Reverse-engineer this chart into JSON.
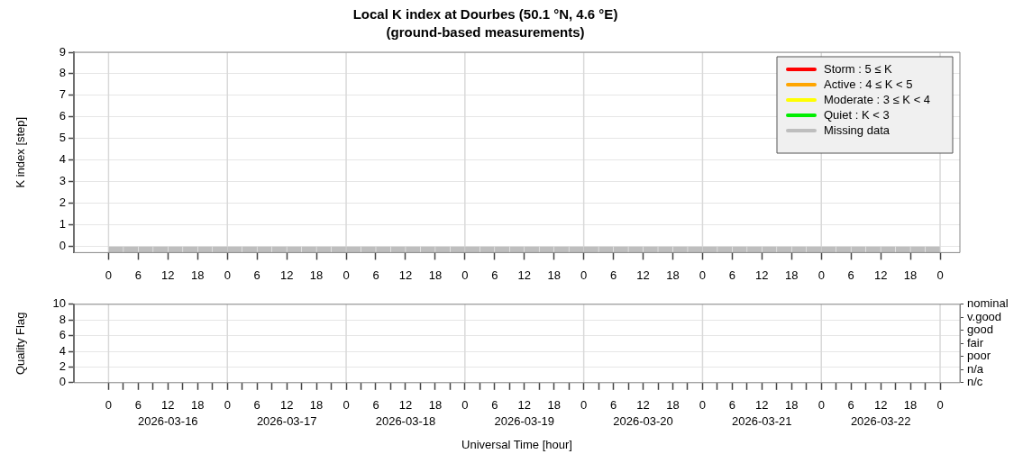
{
  "chart_data": [
    {
      "type": "bar",
      "title": "Local K index at Dourbes (50.1 °N, 4.6 °E)",
      "subtitle": "(ground-based measurements)",
      "ylabel": "K index [step]",
      "xlim": [
        "2026-03-15T17:00",
        "2026-03-23T04:00"
      ],
      "ylim": [
        -0.3,
        9
      ],
      "yticks": [
        0,
        1,
        2,
        3,
        4,
        5,
        6,
        7,
        8,
        9
      ],
      "xticks": [
        {
          "value": "2026-03-16T00:00",
          "label": "0"
        },
        {
          "value": "2026-03-16T06:00",
          "label": "6"
        },
        {
          "value": "2026-03-16T12:00",
          "label": "12"
        },
        {
          "value": "2026-03-16T18:00",
          "label": "18"
        },
        {
          "value": "2026-03-17T00:00",
          "label": "0"
        },
        {
          "value": "2026-03-17T06:00",
          "label": "6"
        },
        {
          "value": "2026-03-17T12:00",
          "label": "12"
        },
        {
          "value": "2026-03-17T18:00",
          "label": "18"
        },
        {
          "value": "2026-03-18T00:00",
          "label": "0"
        },
        {
          "value": "2026-03-18T06:00",
          "label": "6"
        },
        {
          "value": "2026-03-18T12:00",
          "label": "12"
        },
        {
          "value": "2026-03-18T18:00",
          "label": "18"
        },
        {
          "value": "2026-03-19T00:00",
          "label": "0"
        },
        {
          "value": "2026-03-19T06:00",
          "label": "6"
        },
        {
          "value": "2026-03-19T12:00",
          "label": "12"
        },
        {
          "value": "2026-03-19T18:00",
          "label": "18"
        },
        {
          "value": "2026-03-20T00:00",
          "label": "0"
        },
        {
          "value": "2026-03-20T06:00",
          "label": "6"
        },
        {
          "value": "2026-03-20T12:00",
          "label": "12"
        },
        {
          "value": "2026-03-20T18:00",
          "label": "18"
        },
        {
          "value": "2026-03-21T00:00",
          "label": "0"
        },
        {
          "value": "2026-03-21T06:00",
          "label": "6"
        },
        {
          "value": "2026-03-21T12:00",
          "label": "12"
        },
        {
          "value": "2026-03-21T18:00",
          "label": "18"
        },
        {
          "value": "2026-03-22T00:00",
          "label": "0"
        },
        {
          "value": "2026-03-22T06:00",
          "label": "6"
        },
        {
          "value": "2026-03-22T12:00",
          "label": "12"
        },
        {
          "value": "2026-03-22T18:00",
          "label": "18"
        },
        {
          "value": "2026-03-23T00:00",
          "label": "0"
        }
      ],
      "grid": "y",
      "legend": "top right",
      "ref_lines": [
        {
          "axis": "x",
          "value": "2026-03-16T00:00",
          "color": "#d9d9d9"
        },
        {
          "axis": "x",
          "value": "2026-03-17T00:00",
          "color": "#d9d9d9"
        },
        {
          "axis": "x",
          "value": "2026-03-18T00:00",
          "color": "#d9d9d9"
        },
        {
          "axis": "x",
          "value": "2026-03-19T00:00",
          "color": "#d9d9d9"
        },
        {
          "axis": "x",
          "value": "2026-03-20T00:00",
          "color": "#d9d9d9"
        },
        {
          "axis": "x",
          "value": "2026-03-21T00:00",
          "color": "#d9d9d9"
        },
        {
          "axis": "x",
          "value": "2026-03-22T00:00",
          "color": "#d9d9d9"
        },
        {
          "axis": "x",
          "value": "2026-03-23T00:00",
          "color": "#d9d9d9"
        }
      ],
      "series": [
        {
          "name": "Storm : 5 ≤ K",
          "color": "#ff0000"
        },
        {
          "name": "Active : 4 ≤ K < 5",
          "color": "#ffa500"
        },
        {
          "name": "Moderate : 3 ≤ K < 4",
          "color": "#ffff00"
        },
        {
          "name": "Quiet : K < 3",
          "color": "#00ee00"
        },
        {
          "name": "Missing data",
          "color": "#bebebe",
          "x": [
            "2026-03-16T01:30",
            "2026-03-16T04:30",
            "2026-03-16T07:30",
            "2026-03-16T10:30",
            "2026-03-16T13:30",
            "2026-03-16T16:30",
            "2026-03-16T19:30",
            "2026-03-16T22:30",
            "2026-03-17T01:30",
            "2026-03-17T04:30",
            "2026-03-17T07:30",
            "2026-03-17T10:30",
            "2026-03-17T13:30",
            "2026-03-17T16:30",
            "2026-03-17T19:30",
            "2026-03-17T22:30",
            "2026-03-18T01:30",
            "2026-03-18T04:30",
            "2026-03-18T07:30",
            "2026-03-18T10:30",
            "2026-03-18T13:30",
            "2026-03-18T16:30",
            "2026-03-18T19:30",
            "2026-03-18T22:30",
            "2026-03-19T01:30",
            "2026-03-19T04:30",
            "2026-03-19T07:30",
            "2026-03-19T10:30",
            "2026-03-19T13:30",
            "2026-03-19T16:30",
            "2026-03-19T19:30",
            "2026-03-19T22:30",
            "2026-03-20T01:30",
            "2026-03-20T04:30",
            "2026-03-20T07:30",
            "2026-03-20T10:30",
            "2026-03-20T13:30",
            "2026-03-20T16:30",
            "2026-03-20T19:30",
            "2026-03-20T22:30",
            "2026-03-21T01:30",
            "2026-03-21T04:30",
            "2026-03-21T07:30",
            "2026-03-21T10:30",
            "2026-03-21T13:30",
            "2026-03-21T16:30",
            "2026-03-21T19:30",
            "2026-03-21T22:30",
            "2026-03-22T01:30",
            "2026-03-22T04:30",
            "2026-03-22T07:30",
            "2026-03-22T10:30",
            "2026-03-22T13:30",
            "2026-03-22T16:30",
            "2026-03-22T19:30",
            "2026-03-22T22:30"
          ],
          "values": [
            0.3,
            0.3,
            0.3,
            0.3,
            0.3,
            0.3,
            0.3,
            0.3,
            0.3,
            0.3,
            0.3,
            0.3,
            0.3,
            0.3,
            0.3,
            0.3,
            0.3,
            0.3,
            0.3,
            0.3,
            0.3,
            0.3,
            0.3,
            0.3,
            0.3,
            0.3,
            0.3,
            0.3,
            0.3,
            0.3,
            0.3,
            0.3,
            0.3,
            0.3,
            0.3,
            0.3,
            0.3,
            0.3,
            0.3,
            0.3,
            0.3,
            0.3,
            0.3,
            0.3,
            0.3,
            0.3,
            0.3,
            0.3,
            0.3,
            0.3,
            0.3,
            0.3,
            0.3,
            0.3,
            0.3,
            0.3
          ],
          "base": [
            -0.3,
            -0.3,
            -0.3,
            -0.3,
            -0.3,
            -0.3,
            -0.3,
            -0.3,
            -0.3,
            -0.3,
            -0.3,
            -0.3,
            -0.3,
            -0.3,
            -0.3,
            -0.3,
            -0.3,
            -0.3,
            -0.3,
            -0.3,
            -0.3,
            -0.3,
            -0.3,
            -0.3,
            -0.3,
            -0.3,
            -0.3,
            -0.3,
            -0.3,
            -0.3,
            -0.3,
            -0.3,
            -0.3,
            -0.3,
            -0.3,
            -0.3,
            -0.3,
            -0.3,
            -0.3,
            -0.3,
            -0.3,
            -0.3,
            -0.3,
            -0.3,
            -0.3,
            -0.3,
            -0.3,
            -0.3,
            -0.3,
            -0.3,
            -0.3,
            -0.3,
            -0.3,
            -0.3,
            -0.3,
            -0.3
          ]
        }
      ]
    },
    {
      "type": "line",
      "ylabel": "Quality Flag",
      "xlabel": "Universal Time [hour]",
      "xlim": [
        "2026-03-15T17:00",
        "2026-03-23T04:00"
      ],
      "ylim": [
        0,
        10
      ],
      "yticks": [
        0,
        2,
        4,
        6,
        8,
        10
      ],
      "y2_categories": [
        "nominal",
        "v.good",
        "good",
        "fair",
        "poor",
        "n/a",
        "n/c"
      ],
      "xticks": [
        {
          "value": "2026-03-16T00:00",
          "label": "0"
        },
        {
          "value": "2026-03-16T03:00",
          "label": null
        },
        {
          "value": "2026-03-16T06:00",
          "label": "6"
        },
        {
          "value": "2026-03-16T09:00",
          "label": null
        },
        {
          "value": "2026-03-16T12:00",
          "label": "12"
        },
        {
          "value": "2026-03-16T15:00",
          "label": null
        },
        {
          "value": "2026-03-16T18:00",
          "label": "18"
        },
        {
          "value": "2026-03-16T21:00",
          "label": null
        },
        {
          "value": "2026-03-17T00:00",
          "label": "0"
        },
        {
          "value": "2026-03-17T03:00",
          "label": null
        },
        {
          "value": "2026-03-17T06:00",
          "label": "6"
        },
        {
          "value": "2026-03-17T09:00",
          "label": null
        },
        {
          "value": "2026-03-17T12:00",
          "label": "12"
        },
        {
          "value": "2026-03-17T15:00",
          "label": null
        },
        {
          "value": "2026-03-17T18:00",
          "label": "18"
        },
        {
          "value": "2026-03-17T21:00",
          "label": null
        },
        {
          "value": "2026-03-18T00:00",
          "label": "0"
        },
        {
          "value": "2026-03-18T03:00",
          "label": null
        },
        {
          "value": "2026-03-18T06:00",
          "label": "6"
        },
        {
          "value": "2026-03-18T09:00",
          "label": null
        },
        {
          "value": "2026-03-18T12:00",
          "label": "12"
        },
        {
          "value": "2026-03-18T15:00",
          "label": null
        },
        {
          "value": "2026-03-18T18:00",
          "label": "18"
        },
        {
          "value": "2026-03-18T21:00",
          "label": null
        },
        {
          "value": "2026-03-19T00:00",
          "label": "0"
        },
        {
          "value": "2026-03-19T03:00",
          "label": null
        },
        {
          "value": "2026-03-19T06:00",
          "label": "6"
        },
        {
          "value": "2026-03-19T09:00",
          "label": null
        },
        {
          "value": "2026-03-19T12:00",
          "label": "12"
        },
        {
          "value": "2026-03-19T15:00",
          "label": null
        },
        {
          "value": "2026-03-19T18:00",
          "label": "18"
        },
        {
          "value": "2026-03-19T21:00",
          "label": null
        },
        {
          "value": "2026-03-20T00:00",
          "label": "0"
        },
        {
          "value": "2026-03-20T03:00",
          "label": null
        },
        {
          "value": "2026-03-20T06:00",
          "label": "6"
        },
        {
          "value": "2026-03-20T09:00",
          "label": null
        },
        {
          "value": "2026-03-20T12:00",
          "label": "12"
        },
        {
          "value": "2026-03-20T15:00",
          "label": null
        },
        {
          "value": "2026-03-20T18:00",
          "label": "18"
        },
        {
          "value": "2026-03-20T21:00",
          "label": null
        },
        {
          "value": "2026-03-21T00:00",
          "label": "0"
        },
        {
          "value": "2026-03-21T03:00",
          "label": null
        },
        {
          "value": "2026-03-21T06:00",
          "label": "6"
        },
        {
          "value": "2026-03-21T09:00",
          "label": null
        },
        {
          "value": "2026-03-21T12:00",
          "label": "12"
        },
        {
          "value": "2026-03-21T15:00",
          "label": null
        },
        {
          "value": "2026-03-21T18:00",
          "label": "18"
        },
        {
          "value": "2026-03-21T21:00",
          "label": null
        },
        {
          "value": "2026-03-22T00:00",
          "label": "0"
        },
        {
          "value": "2026-03-22T03:00",
          "label": null
        },
        {
          "value": "2026-03-22T06:00",
          "label": "6"
        },
        {
          "value": "2026-03-22T09:00",
          "label": null
        },
        {
          "value": "2026-03-22T12:00",
          "label": "12"
        },
        {
          "value": "2026-03-22T15:00",
          "label": null
        },
        {
          "value": "2026-03-22T18:00",
          "label": "18"
        },
        {
          "value": "2026-03-22T21:00",
          "label": null
        },
        {
          "value": "2026-03-23T00:00",
          "label": "0"
        }
      ],
      "grid": "y",
      "ref_lines": [
        {
          "axis": "x",
          "value": "2026-03-16T00:00",
          "color": "#d9d9d9"
        },
        {
          "axis": "x",
          "value": "2026-03-17T00:00",
          "color": "#d9d9d9"
        },
        {
          "axis": "x",
          "value": "2026-03-18T00:00",
          "color": "#d9d9d9"
        },
        {
          "axis": "x",
          "value": "2026-03-19T00:00",
          "color": "#d9d9d9"
        },
        {
          "axis": "x",
          "value": "2026-03-20T00:00",
          "color": "#d9d9d9"
        },
        {
          "axis": "x",
          "value": "2026-03-21T00:00",
          "color": "#d9d9d9"
        },
        {
          "axis": "x",
          "value": "2026-03-22T00:00",
          "color": "#d9d9d9"
        },
        {
          "axis": "x",
          "value": "2026-03-23T00:00",
          "color": "#d9d9d9"
        }
      ],
      "annotations": [
        "2026-03-16",
        "2026-03-17",
        "2026-03-18",
        "2026-03-19",
        "2026-03-20",
        "2026-03-21",
        "2026-03-22"
      ]
    }
  ]
}
